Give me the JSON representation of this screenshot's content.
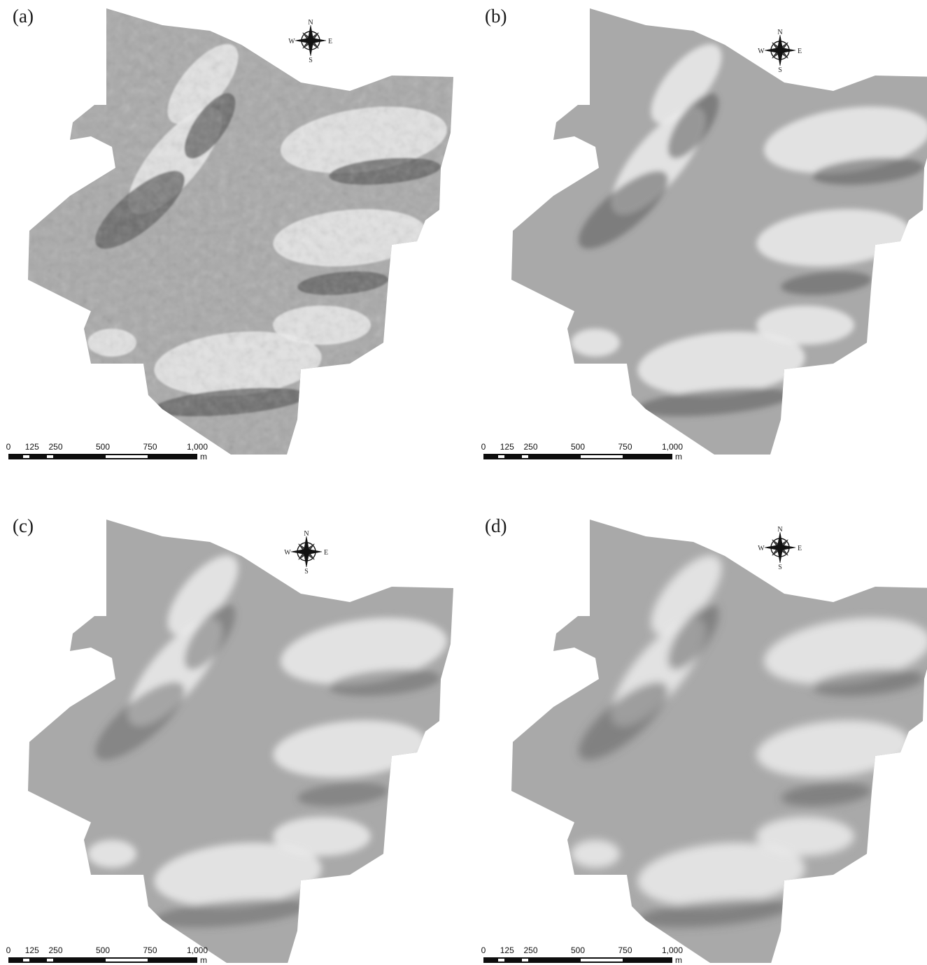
{
  "panels": [
    {
      "label": "(a)"
    },
    {
      "label": "(b)"
    },
    {
      "label": "(c)"
    },
    {
      "label": "(d)"
    }
  ],
  "compass": {
    "n": "N",
    "e": "E",
    "s": "S",
    "w": "W",
    "icon": "compass-rose-icon"
  },
  "scalebar": {
    "ticks": [
      "0",
      "125",
      "250",
      "500",
      "750",
      "1,000"
    ],
    "unit": "m"
  },
  "colors": {
    "background": "#ffffff",
    "terrain_base": "#a9a9a9",
    "terrain_light": "#ececec",
    "terrain_dark": "#5a5a5a"
  }
}
